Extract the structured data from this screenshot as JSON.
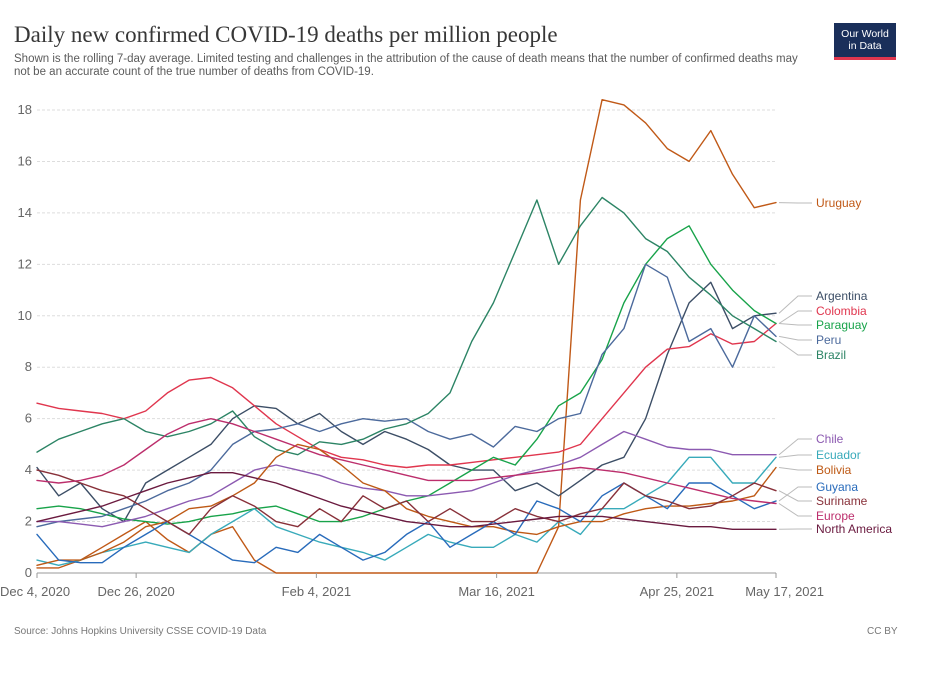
{
  "header": {
    "title": "Daily new confirmed COVID-19 deaths per million people",
    "subtitle": "Shown is the rolling 7-day average. Limited testing and challenges in the attribution of the cause of death means that the number of confirmed deaths may not be an accurate count of the true number of deaths from COVID-19.",
    "logo_line1": "Our World",
    "logo_line2": "in Data"
  },
  "footer": {
    "source": "Source: Johns Hopkins University CSSE COVID-19 Data",
    "license": "CC BY"
  },
  "colors": {
    "grid": "#dddddd",
    "axis": "#999999",
    "tick_text": "#666666",
    "logo_bg": "#1a2f5a",
    "logo_accent": "#e0364e"
  },
  "chart_data": {
    "type": "line",
    "title": "Daily new confirmed COVID-19 deaths per million people",
    "xlabel": "",
    "ylabel": "",
    "ylim": [
      0,
      18
    ],
    "xlim": [
      0,
      164
    ],
    "yticks": [
      0,
      2,
      4,
      6,
      8,
      10,
      12,
      14,
      16,
      18
    ],
    "xticks": [
      {
        "day": 0,
        "label": "Dec 4, 2020"
      },
      {
        "day": 22,
        "label": "Dec 26, 2020"
      },
      {
        "day": 62,
        "label": "Feb 4, 2021"
      },
      {
        "day": 102,
        "label": "Mar 16, 2021"
      },
      {
        "day": 142,
        "label": "Apr 25, 2021"
      },
      {
        "day": 164,
        "label": "May 17, 2021"
      }
    ],
    "grid": true,
    "legend": "right-end-labels",
    "series": [
      {
        "name": "Uruguay",
        "color": "#c05917",
        "values": [
          0.2,
          0.2,
          0.5,
          1.0,
          1.5,
          2.0,
          1.3,
          0.8,
          1.5,
          1.8,
          0.5,
          0.0,
          0.0,
          0.0,
          0.0,
          0.0,
          0.0,
          0.0,
          0.0,
          0.0,
          0.0,
          0.0,
          0.0,
          0.0,
          1.8,
          14.5,
          18.4,
          18.2,
          17.5,
          16.5,
          16.0,
          17.2,
          15.5,
          14.2,
          14.4
        ]
      },
      {
        "name": "Argentina",
        "color": "#3c4e66",
        "values": [
          4.1,
          3.0,
          3.5,
          2.5,
          2.0,
          3.5,
          4.0,
          4.5,
          5.0,
          6.0,
          6.5,
          6.4,
          5.8,
          6.2,
          5.5,
          5.0,
          5.5,
          5.2,
          4.8,
          4.2,
          4.0,
          4.0,
          3.2,
          3.5,
          3.0,
          3.6,
          4.2,
          4.5,
          6.0,
          8.5,
          10.5,
          11.3,
          9.5,
          10.0,
          10.1
        ]
      },
      {
        "name": "Colombia",
        "color": "#e0364e",
        "values": [
          6.6,
          6.4,
          6.3,
          6.2,
          6.0,
          6.3,
          7.0,
          7.5,
          7.6,
          7.2,
          6.5,
          5.8,
          5.3,
          4.8,
          4.5,
          4.4,
          4.2,
          4.1,
          4.2,
          4.2,
          4.3,
          4.4,
          4.5,
          4.6,
          4.7,
          5.0,
          6.0,
          7.0,
          8.0,
          8.7,
          8.8,
          9.3,
          8.9,
          9.0,
          9.7
        ]
      },
      {
        "name": "Paraguay",
        "color": "#18a34a",
        "values": [
          2.5,
          2.6,
          2.5,
          2.3,
          2.1,
          2.0,
          1.9,
          2.0,
          2.2,
          2.3,
          2.5,
          2.6,
          2.3,
          2.0,
          2.0,
          2.2,
          2.5,
          2.8,
          3.0,
          3.5,
          4.0,
          4.5,
          4.2,
          5.2,
          6.5,
          7.0,
          8.3,
          10.5,
          12.0,
          13.0,
          13.5,
          12.0,
          11.0,
          10.2,
          9.7
        ]
      },
      {
        "name": "Peru",
        "color": "#4c6a9c",
        "values": [
          1.8,
          2.0,
          2.1,
          2.2,
          2.5,
          2.8,
          3.2,
          3.5,
          4.0,
          5.0,
          5.5,
          5.6,
          5.8,
          5.5,
          5.8,
          6.0,
          5.9,
          6.0,
          5.5,
          5.2,
          5.4,
          4.9,
          5.7,
          5.5,
          6.0,
          6.2,
          8.5,
          9.5,
          12.0,
          11.5,
          9.0,
          9.5,
          8.0,
          10.0,
          9.2
        ]
      },
      {
        "name": "Brazil",
        "color": "#2c8465",
        "values": [
          4.7,
          5.2,
          5.5,
          5.8,
          6.0,
          5.5,
          5.3,
          5.5,
          5.8,
          6.3,
          5.3,
          4.8,
          4.6,
          5.1,
          5.0,
          5.2,
          5.6,
          5.8,
          6.2,
          7.0,
          9.0,
          10.5,
          12.5,
          14.5,
          12.0,
          13.5,
          14.6,
          14.0,
          13.0,
          12.5,
          11.5,
          10.8,
          10.0,
          9.5,
          9.0
        ]
      },
      {
        "name": "Chile",
        "color": "#8c5ab1",
        "values": [
          2.0,
          2.0,
          1.9,
          1.8,
          2.0,
          2.2,
          2.5,
          2.8,
          3.0,
          3.5,
          4.0,
          4.2,
          4.0,
          3.8,
          3.5,
          3.3,
          3.2,
          3.0,
          3.0,
          3.1,
          3.2,
          3.5,
          3.8,
          4.0,
          4.2,
          4.5,
          5.0,
          5.5,
          5.2,
          4.9,
          4.8,
          4.8,
          4.6,
          4.6,
          4.6
        ]
      },
      {
        "name": "Ecuador",
        "color": "#38aaba",
        "values": [
          0.5,
          0.3,
          0.5,
          0.8,
          1.0,
          1.2,
          1.0,
          0.8,
          1.5,
          2.0,
          2.5,
          1.8,
          1.5,
          1.2,
          1.0,
          0.8,
          0.5,
          1.0,
          1.5,
          1.2,
          1.0,
          1.0,
          1.5,
          1.2,
          2.0,
          1.5,
          2.5,
          2.5,
          3.0,
          3.5,
          4.5,
          4.5,
          3.5,
          3.5,
          4.5
        ]
      },
      {
        "name": "Bolivia",
        "color": "#be5915",
        "values": [
          0.3,
          0.5,
          0.5,
          0.8,
          1.2,
          1.8,
          2.0,
          2.5,
          2.6,
          3.0,
          3.5,
          4.5,
          5.0,
          4.8,
          4.2,
          3.5,
          3.2,
          2.5,
          2.2,
          2.0,
          1.8,
          1.8,
          1.6,
          1.5,
          1.8,
          2.0,
          2.0,
          2.3,
          2.5,
          2.6,
          2.6,
          2.7,
          2.8,
          3.0,
          4.1
        ]
      },
      {
        "name": "Guyana",
        "color": "#286bbb",
        "values": [
          1.5,
          0.5,
          0.4,
          0.4,
          1.0,
          1.5,
          2.0,
          1.5,
          1.0,
          0.5,
          0.4,
          1.0,
          0.8,
          1.5,
          1.0,
          0.5,
          0.8,
          1.5,
          2.0,
          1.0,
          1.5,
          2.0,
          1.5,
          2.8,
          2.5,
          2.0,
          3.0,
          3.5,
          3.0,
          2.5,
          3.5,
          3.5,
          3.0,
          2.5,
          2.8
        ]
      },
      {
        "name": "Suriname",
        "color": "#883039",
        "values": [
          4.0,
          3.8,
          3.5,
          3.2,
          3.0,
          2.5,
          2.0,
          1.5,
          2.5,
          3.0,
          2.6,
          2.0,
          1.8,
          2.5,
          2.0,
          3.0,
          2.5,
          2.8,
          2.0,
          2.5,
          2.0,
          2.0,
          2.5,
          2.2,
          2.0,
          2.3,
          2.5,
          3.5,
          3.0,
          2.8,
          2.5,
          2.6,
          3.0,
          3.5,
          3.2
        ]
      },
      {
        "name": "Europe",
        "color": "#bc2e6c",
        "values": [
          3.6,
          3.5,
          3.6,
          3.8,
          4.2,
          4.8,
          5.4,
          5.8,
          6.0,
          5.8,
          5.5,
          5.2,
          4.9,
          4.6,
          4.4,
          4.2,
          4.0,
          3.8,
          3.6,
          3.6,
          3.6,
          3.7,
          3.8,
          3.9,
          4.0,
          4.1,
          4.0,
          3.9,
          3.7,
          3.5,
          3.3,
          3.1,
          2.9,
          2.8,
          2.7
        ]
      },
      {
        "name": "North America",
        "color": "#6a1a3f",
        "values": [
          2.0,
          2.2,
          2.4,
          2.6,
          2.9,
          3.2,
          3.5,
          3.7,
          3.9,
          3.9,
          3.7,
          3.5,
          3.2,
          2.9,
          2.6,
          2.4,
          2.2,
          2.0,
          1.9,
          1.8,
          1.8,
          1.9,
          2.0,
          2.1,
          2.2,
          2.2,
          2.2,
          2.1,
          2.0,
          1.9,
          1.8,
          1.8,
          1.7,
          1.7,
          1.7
        ]
      }
    ],
    "end_labels": [
      {
        "name": "Uruguay",
        "color": "#c05917"
      },
      {
        "name": "Argentina",
        "color": "#3c4e66"
      },
      {
        "name": "Colombia",
        "color": "#e0364e"
      },
      {
        "name": "Paraguay",
        "color": "#18a34a"
      },
      {
        "name": "Peru",
        "color": "#4c6a9c"
      },
      {
        "name": "Brazil",
        "color": "#2c8465"
      },
      {
        "name": "Chile",
        "color": "#8c5ab1"
      },
      {
        "name": "Ecuador",
        "color": "#38aaba"
      },
      {
        "name": "Bolivia",
        "color": "#be5915"
      },
      {
        "name": "Guyana",
        "color": "#286bbb"
      },
      {
        "name": "Suriname",
        "color": "#883039"
      },
      {
        "name": "Europe",
        "color": "#bc2e6c"
      },
      {
        "name": "North America",
        "color": "#6a1a3f"
      }
    ]
  }
}
